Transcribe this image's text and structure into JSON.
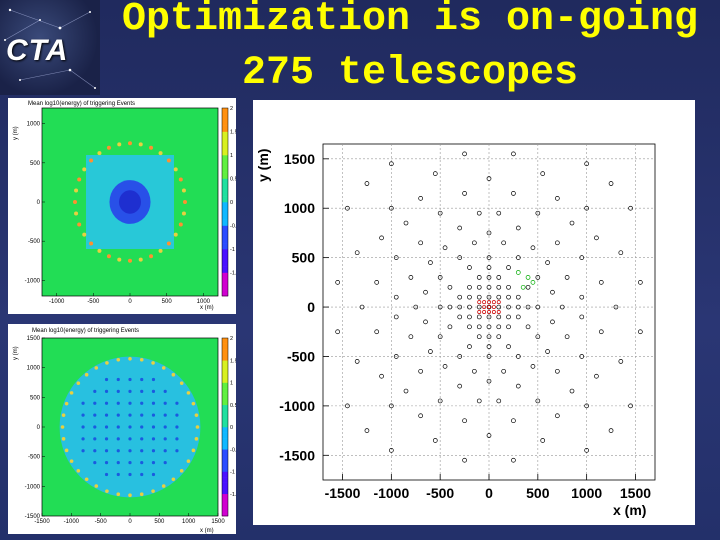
{
  "header": {
    "logo_text": "CTA",
    "title_line1": "Optimization is on-going",
    "title_line2": "275 telescopes"
  },
  "colors": {
    "title": "#ffff00",
    "background": "#25306a",
    "map_field": "#22dd55",
    "map_center": "#1e2fd0",
    "map_spots": "#e8d040",
    "marker_black": "#000000",
    "marker_red": "#cc0000",
    "marker_green": "#00aa00"
  },
  "chart_data": [
    {
      "type": "heatmap",
      "title": "Mean log10(energy) of triggering Events",
      "xlabel": "x (m)",
      "ylabel": "y (m)",
      "xlim": [
        -1200,
        1200
      ],
      "ylim": [
        -1200,
        1200
      ],
      "xticks": [
        -1000,
        -500,
        0,
        500,
        1000
      ],
      "yticks": [
        -1000,
        -500,
        0,
        500,
        1000
      ],
      "colorbar_ticks": [
        "2",
        "1.5",
        "1",
        "0.5",
        "0",
        "-0.5",
        "-1",
        "-1.5"
      ],
      "colorbar_range": [
        -2,
        2
      ]
    },
    {
      "type": "heatmap",
      "title": "Mean log10(energy) of triggering Events",
      "xlabel": "x (m)",
      "ylabel": "y (m)",
      "xlim": [
        -1500,
        1500
      ],
      "ylim": [
        -1500,
        1500
      ],
      "xticks": [
        -1500,
        -1000,
        -500,
        0,
        500,
        1000,
        1500
      ],
      "yticks": [
        -1500,
        -1000,
        -500,
        0,
        500,
        1000,
        1500
      ],
      "colorbar_ticks": [
        "2",
        "1.5",
        "1",
        "0.5",
        "0",
        "-0.5",
        "-1",
        "-1.5"
      ],
      "colorbar_range": [
        -2,
        2
      ]
    },
    {
      "type": "scatter",
      "xlabel": "x (m)",
      "ylabel": "y (m)",
      "xlim": [
        -1700,
        1700
      ],
      "ylim": [
        -1750,
        1650
      ],
      "xticks": [
        -1500,
        -1000,
        -500,
        0,
        500,
        1000,
        1500
      ],
      "yticks": [
        -1500,
        -1000,
        -500,
        0,
        500,
        1000,
        1500
      ],
      "grid": true,
      "series": [
        {
          "color": "#000000",
          "points": [
            [
              0,
              0
            ],
            [
              100,
              0
            ],
            [
              -100,
              0
            ],
            [
              0,
              100
            ],
            [
              0,
              -100
            ],
            [
              200,
              0
            ],
            [
              -200,
              0
            ],
            [
              0,
              200
            ],
            [
              0,
              -200
            ],
            [
              300,
              0
            ],
            [
              -300,
              0
            ],
            [
              0,
              300
            ],
            [
              0,
              -300
            ],
            [
              100,
              100
            ],
            [
              -100,
              100
            ],
            [
              100,
              -100
            ],
            [
              -100,
              -100
            ],
            [
              200,
              100
            ],
            [
              -200,
              100
            ],
            [
              200,
              -100
            ],
            [
              -200,
              -100
            ],
            [
              100,
              200
            ],
            [
              -100,
              200
            ],
            [
              100,
              -200
            ],
            [
              -100,
              -200
            ],
            [
              200,
              200
            ],
            [
              -200,
              200
            ],
            [
              200,
              -200
            ],
            [
              -200,
              -200
            ],
            [
              300,
              100
            ],
            [
              -300,
              100
            ],
            [
              300,
              -100
            ],
            [
              -300,
              -100
            ],
            [
              100,
              300
            ],
            [
              -100,
              300
            ],
            [
              100,
              -300
            ],
            [
              -100,
              -300
            ],
            [
              400,
              0
            ],
            [
              -400,
              0
            ],
            [
              0,
              400
            ],
            [
              0,
              -400
            ],
            [
              400,
              200
            ],
            [
              -400,
              200
            ],
            [
              400,
              -200
            ],
            [
              -400,
              -200
            ],
            [
              200,
              400
            ],
            [
              -200,
              400
            ],
            [
              200,
              -400
            ],
            [
              -200,
              -400
            ],
            [
              500,
              0
            ],
            [
              -500,
              0
            ],
            [
              0,
              500
            ],
            [
              0,
              -500
            ],
            [
              500,
              300
            ],
            [
              -500,
              300
            ],
            [
              500,
              -300
            ],
            [
              -500,
              -300
            ],
            [
              300,
              500
            ],
            [
              -300,
              500
            ],
            [
              300,
              -500
            ],
            [
              -300,
              -500
            ],
            [
              650,
              150
            ],
            [
              -650,
              150
            ],
            [
              650,
              -150
            ],
            [
              -650,
              -150
            ],
            [
              150,
              650
            ],
            [
              -150,
              650
            ],
            [
              150,
              -650
            ],
            [
              -150,
              -650
            ],
            [
              600,
              450
            ],
            [
              -600,
              450
            ],
            [
              600,
              -450
            ],
            [
              -600,
              -450
            ],
            [
              450,
              600
            ],
            [
              -450,
              600
            ],
            [
              450,
              -600
            ],
            [
              -450,
              -600
            ],
            [
              750,
              0
            ],
            [
              -750,
              0
            ],
            [
              0,
              750
            ],
            [
              0,
              -750
            ],
            [
              800,
              300
            ],
            [
              -800,
              300
            ],
            [
              800,
              -300
            ],
            [
              -800,
              -300
            ],
            [
              300,
              800
            ],
            [
              -300,
              800
            ],
            [
              300,
              -800
            ],
            [
              -300,
              -800
            ],
            [
              700,
              650
            ],
            [
              -700,
              650
            ],
            [
              700,
              -650
            ],
            [
              -700,
              -650
            ],
            [
              950,
              100
            ],
            [
              -950,
              100
            ],
            [
              950,
              -100
            ],
            [
              -950,
              -100
            ],
            [
              100,
              950
            ],
            [
              -100,
              950
            ],
            [
              100,
              -950
            ],
            [
              -100,
              -950
            ],
            [
              950,
              500
            ],
            [
              -950,
              500
            ],
            [
              950,
              -500
            ],
            [
              -950,
              -500
            ],
            [
              500,
              950
            ],
            [
              -500,
              950
            ],
            [
              500,
              -950
            ],
            [
              -500,
              -950
            ],
            [
              850,
              850
            ],
            [
              -850,
              850
            ],
            [
              850,
              -850
            ],
            [
              -850,
              -850
            ],
            [
              1150,
              250
            ],
            [
              -1150,
              250
            ],
            [
              1150,
              -250
            ],
            [
              -1150,
              -250
            ],
            [
              250,
              1150
            ],
            [
              -250,
              1150
            ],
            [
              250,
              -1150
            ],
            [
              -250,
              -1150
            ],
            [
              1100,
              700
            ],
            [
              -1100,
              700
            ],
            [
              1100,
              -700
            ],
            [
              -1100,
              -700
            ],
            [
              700,
              1100
            ],
            [
              -700,
              1100
            ],
            [
              700,
              -1100
            ],
            [
              -700,
              -1100
            ],
            [
              1300,
              0
            ],
            [
              -1300,
              0
            ],
            [
              0,
              1300
            ],
            [
              0,
              -1300
            ],
            [
              1350,
              550
            ],
            [
              -1350,
              550
            ],
            [
              1350,
              -550
            ],
            [
              -1350,
              -550
            ],
            [
              550,
              1350
            ],
            [
              -550,
              1350
            ],
            [
              550,
              -1350
            ],
            [
              -550,
              -1350
            ],
            [
              1000,
              1000
            ],
            [
              -1000,
              1000
            ],
            [
              1000,
              -1000
            ],
            [
              -1000,
              -1000
            ],
            [
              1450,
              1000
            ],
            [
              -1450,
              1000
            ],
            [
              1450,
              -1000
            ],
            [
              -1450,
              -1000
            ],
            [
              1000,
              1450
            ],
            [
              -1000,
              1450
            ],
            [
              1000,
              -1450
            ],
            [
              -1000,
              -1450
            ],
            [
              1550,
              250
            ],
            [
              -1550,
              250
            ],
            [
              1550,
              -250
            ],
            [
              -1550,
              -250
            ],
            [
              250,
              1550
            ],
            [
              -250,
              1550
            ],
            [
              250,
              -1550
            ],
            [
              -250,
              -1550
            ],
            [
              1250,
              1250
            ],
            [
              -1250,
              1250
            ],
            [
              1250,
              -1250
            ],
            [
              -1250,
              -1250
            ]
          ]
        },
        {
          "color": "#cc0000",
          "points": [
            [
              0,
              0
            ],
            [
              50,
              50
            ],
            [
              -50,
              50
            ],
            [
              50,
              -50
            ],
            [
              -50,
              -50
            ],
            [
              50,
              0
            ],
            [
              -50,
              0
            ],
            [
              0,
              50
            ],
            [
              0,
              -50
            ],
            [
              100,
              50
            ],
            [
              -100,
              50
            ],
            [
              100,
              -50
            ],
            [
              -100,
              -50
            ]
          ]
        },
        {
          "color": "#00aa00",
          "points": [
            [
              300,
              350
            ],
            [
              400,
              300
            ],
            [
              350,
              200
            ],
            [
              450,
              250
            ]
          ]
        }
      ]
    }
  ]
}
